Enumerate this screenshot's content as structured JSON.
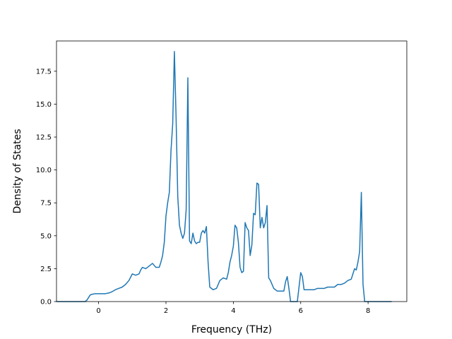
{
  "chart_data": {
    "type": "line",
    "title": "",
    "xlabel": "Frequency (THz)",
    "ylabel": "Density of States",
    "xlim": [
      -1.25,
      9.15
    ],
    "ylim": [
      0,
      19.8
    ],
    "xticks": [
      0,
      2,
      4,
      6,
      8
    ],
    "xtick_labels": [
      "0",
      "2",
      "4",
      "6",
      "8"
    ],
    "yticks": [
      0.0,
      2.5,
      5.0,
      7.5,
      10.0,
      12.5,
      15.0,
      17.5
    ],
    "ytick_labels": [
      "0.0",
      "2.5",
      "5.0",
      "7.5",
      "10.0",
      "12.5",
      "15.0",
      "17.5"
    ],
    "grid": false,
    "legend": "none",
    "color": "#1f77b4",
    "series": [
      {
        "x": [
          -1.25,
          -0.4,
          -0.35,
          -0.3,
          -0.25,
          -0.2,
          -0.1,
          0.0,
          0.1,
          0.2,
          0.3,
          0.4,
          0.5,
          0.6,
          0.7,
          0.8,
          0.9,
          1.0,
          1.1,
          1.2,
          1.25,
          1.3,
          1.4,
          1.5,
          1.6,
          1.7,
          1.8,
          1.85,
          1.9,
          1.95,
          2.0,
          2.05,
          2.1,
          2.15,
          2.2,
          2.25,
          2.3,
          2.35,
          2.4,
          2.45,
          2.5,
          2.55,
          2.6,
          2.65,
          2.7,
          2.75,
          2.8,
          2.85,
          2.9,
          2.95,
          3.0,
          3.05,
          3.1,
          3.15,
          3.2,
          3.25,
          3.3,
          3.35,
          3.4,
          3.5,
          3.6,
          3.7,
          3.8,
          3.85,
          3.9,
          3.95,
          4.0,
          4.05,
          4.1,
          4.15,
          4.2,
          4.25,
          4.3,
          4.35,
          4.4,
          4.45,
          4.5,
          4.55,
          4.6,
          4.65,
          4.7,
          4.75,
          4.8,
          4.85,
          4.9,
          4.95,
          5.0,
          5.05,
          5.1,
          5.2,
          5.3,
          5.4,
          5.5,
          5.55,
          5.6,
          5.65,
          5.7,
          5.8,
          5.9,
          5.95,
          6.0,
          6.05,
          6.1,
          6.2,
          6.3,
          6.4,
          6.5,
          6.6,
          6.7,
          6.8,
          6.9,
          7.0,
          7.1,
          7.2,
          7.3,
          7.4,
          7.5,
          7.55,
          7.6,
          7.65,
          7.7,
          7.75,
          7.8,
          7.85,
          7.9,
          7.95,
          8.0,
          8.2,
          8.5,
          8.7
        ],
        "y": [
          0,
          0,
          0.1,
          0.3,
          0.5,
          0.55,
          0.6,
          0.6,
          0.6,
          0.6,
          0.65,
          0.75,
          0.9,
          1.0,
          1.1,
          1.3,
          1.6,
          2.1,
          2.0,
          2.1,
          2.4,
          2.6,
          2.5,
          2.7,
          2.9,
          2.6,
          2.6,
          3.0,
          3.5,
          4.5,
          6.5,
          7.5,
          8.3,
          11.5,
          13.5,
          19.0,
          14.0,
          8.0,
          5.8,
          5.2,
          4.8,
          5.2,
          7.0,
          17.0,
          4.6,
          4.4,
          5.2,
          4.6,
          4.4,
          4.5,
          4.5,
          5.2,
          5.4,
          5.2,
          5.7,
          3.0,
          1.1,
          1.0,
          0.9,
          1.0,
          1.6,
          1.8,
          1.7,
          2.2,
          3.0,
          3.5,
          4.2,
          5.8,
          5.6,
          4.5,
          2.6,
          2.2,
          2.3,
          6.0,
          5.6,
          5.4,
          3.5,
          4.3,
          6.7,
          6.6,
          9.0,
          8.9,
          5.6,
          6.4,
          5.6,
          6.0,
          7.3,
          1.8,
          1.6,
          1.0,
          0.8,
          0.8,
          0.8,
          1.5,
          1.9,
          1.0,
          0.0,
          0.0,
          0.0,
          1.1,
          2.2,
          1.9,
          0.9,
          0.9,
          0.9,
          0.9,
          1.0,
          1.0,
          1.0,
          1.1,
          1.1,
          1.1,
          1.3,
          1.3,
          1.4,
          1.6,
          1.7,
          2.1,
          2.5,
          2.4,
          3.0,
          3.8,
          8.3,
          1.3,
          0.0,
          0.0,
          0.0,
          0.0,
          0.0,
          0.0
        ]
      }
    ]
  }
}
